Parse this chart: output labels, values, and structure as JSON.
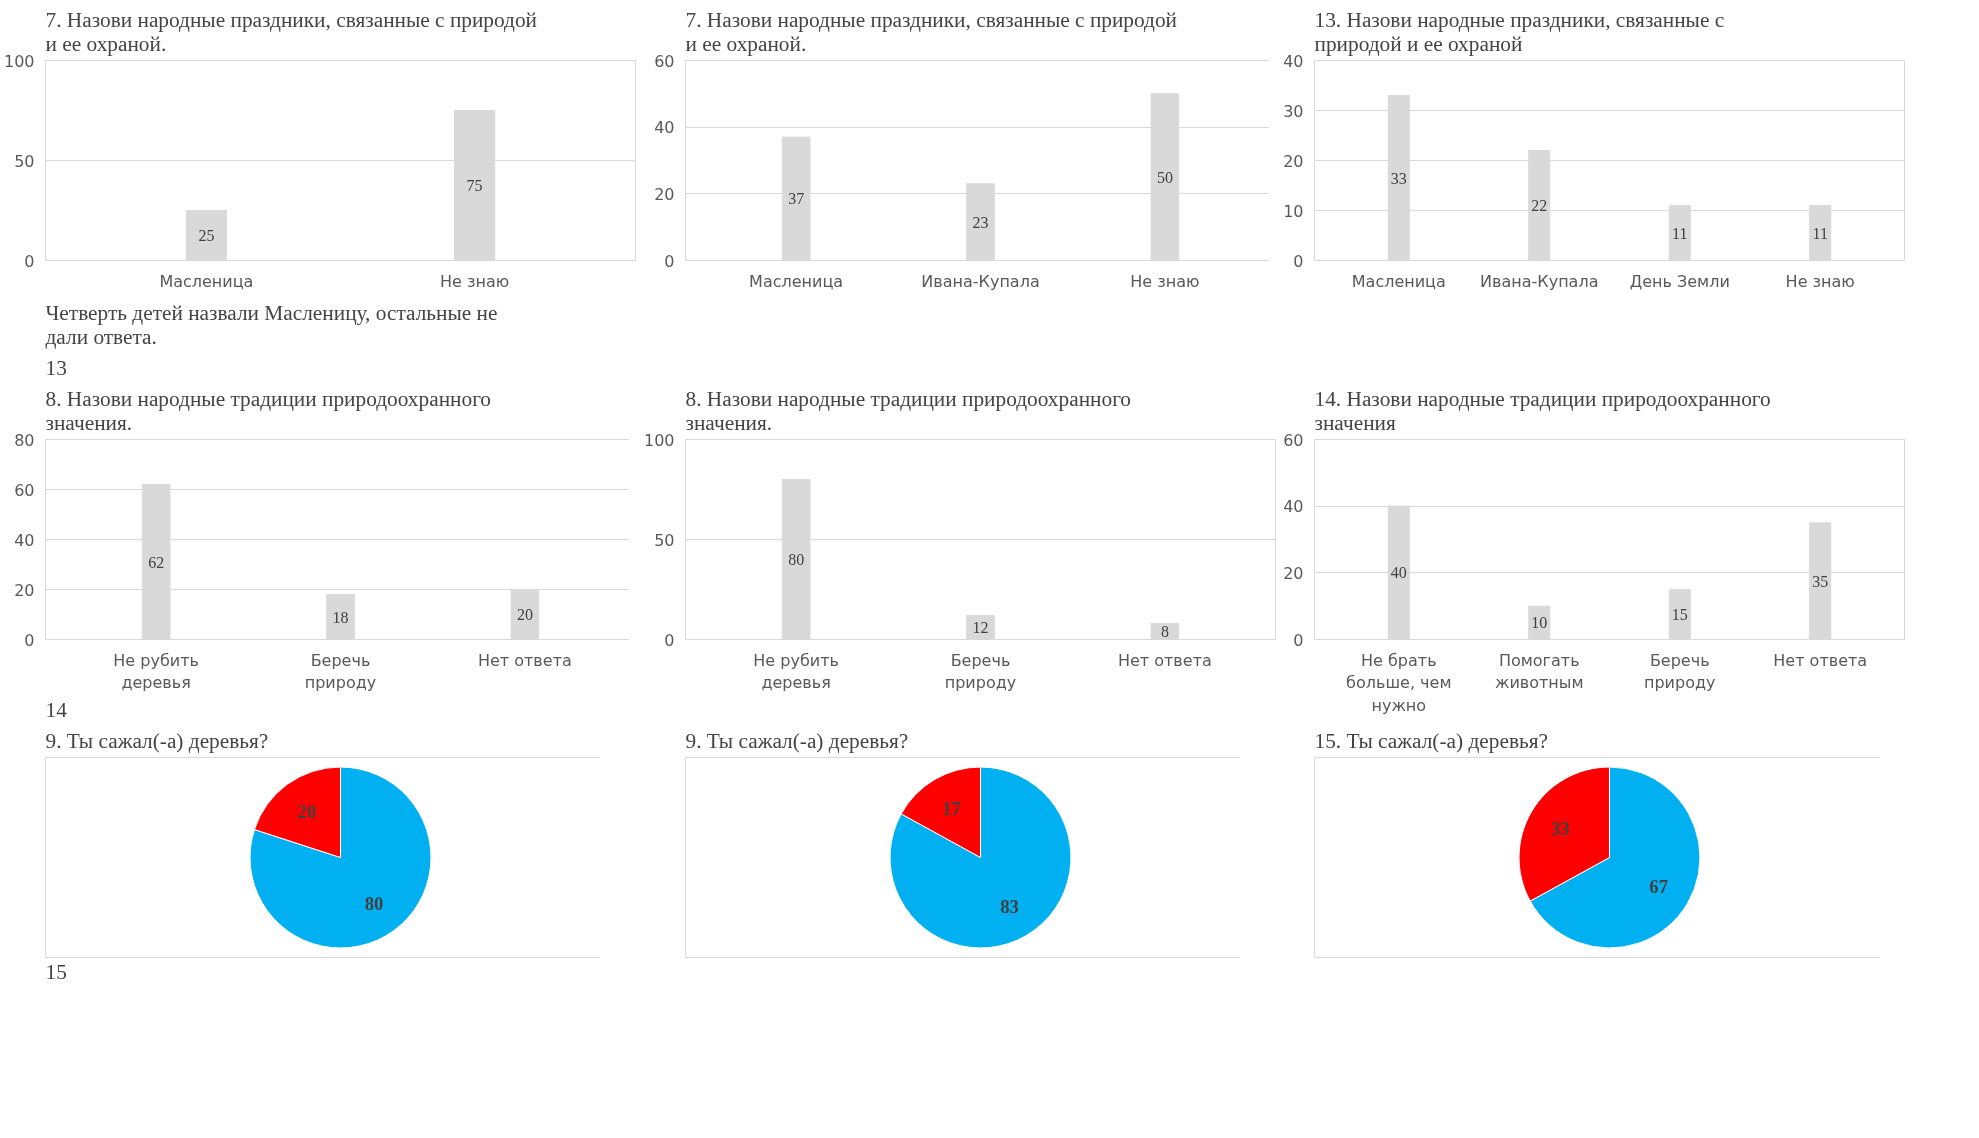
{
  "chart_data": [
    {
      "type": "bar",
      "title": "7. Назови народные праздники, связанные с природой и ее охраной.",
      "categories": [
        "Масленица",
        "Не знаю"
      ],
      "values": [
        25,
        75
      ],
      "color": "#d9d9d9",
      "ylim": [
        0,
        100
      ],
      "yticks": [
        0,
        50,
        100
      ],
      "grid": "y",
      "data_labels": true,
      "annotations": [
        "13",
        "Четверть детей назвали Масленицу, остальные не дали ответа."
      ]
    },
    {
      "type": "bar",
      "title": "7. Назови народные праздники, связанные с природой и ее охраной.",
      "categories": [
        "Масленица",
        "Ивана-Купала",
        "Не знаю"
      ],
      "values": [
        37,
        23,
        50
      ],
      "color": "#d9d9d9",
      "ylim": [
        0,
        60
      ],
      "yticks": [
        0,
        20,
        40,
        60
      ],
      "grid": "y",
      "data_labels": true
    },
    {
      "type": "bar",
      "title": "13. Назови народные праздники, связанные с природой и ее охраной",
      "categories": [
        "Масленица",
        "Ивана-Купала",
        "День Земли",
        "Не знаю"
      ],
      "values": [
        33,
        22,
        11,
        11
      ],
      "color": "#d9d9d9",
      "ylim": [
        0,
        40
      ],
      "yticks": [
        0,
        10,
        20,
        30,
        40
      ],
      "grid": "y",
      "data_labels": true
    },
    {
      "type": "bar",
      "title": "8. Назови народные традиции природоохранного значения.",
      "categories": [
        "Не рубить деревья",
        "Беречь природу",
        "Нет ответа"
      ],
      "values": [
        62,
        18,
        20
      ],
      "color": "#d9d9d9",
      "ylim": [
        0,
        80
      ],
      "yticks": [
        0,
        20,
        40,
        60,
        80
      ],
      "grid": "y",
      "data_labels": true,
      "annotations": [
        "14"
      ]
    },
    {
      "type": "bar",
      "title": "8. Назови народные традиции природоохранного значения.",
      "categories": [
        "Не рубить деревья",
        "Беречь природу",
        "Нет ответа"
      ],
      "values": [
        80,
        12,
        8
      ],
      "color": "#d9d9d9",
      "ylim": [
        0,
        100
      ],
      "yticks": [
        0,
        50,
        100
      ],
      "grid": "y",
      "data_labels": true
    },
    {
      "type": "bar",
      "title": "14. Назови народные традиции природоохранного значения",
      "categories": [
        "Не брать больше, чем нужно",
        "Помогать животным",
        "Беречь природу",
        "Нет ответа"
      ],
      "values": [
        40,
        10,
        15,
        35
      ],
      "color": "#d9d9d9",
      "ylim": [
        0,
        60
      ],
      "yticks": [
        0,
        20,
        40,
        60
      ],
      "grid": "y",
      "data_labels": true
    },
    {
      "type": "pie",
      "title": "9. Ты сажал(-а) деревья?",
      "categories": [
        null,
        null
      ],
      "values": [
        80,
        20
      ],
      "colors": [
        "#00b0f0",
        "#ff0000"
      ],
      "data_labels": true,
      "annotations": [
        "15"
      ]
    },
    {
      "type": "pie",
      "title": "9. Ты сажал(-а) деревья?",
      "categories": [
        null,
        null
      ],
      "values": [
        83,
        17
      ],
      "colors": [
        "#00b0f0",
        "#ff0000"
      ],
      "data_labels": true
    },
    {
      "type": "pie",
      "title": "15. Ты сажал(-а) деревья?",
      "categories": [
        null,
        null
      ],
      "values": [
        67,
        33
      ],
      "colors": [
        "#00b0f0",
        "#ff0000"
      ],
      "data_labels": true
    }
  ]
}
